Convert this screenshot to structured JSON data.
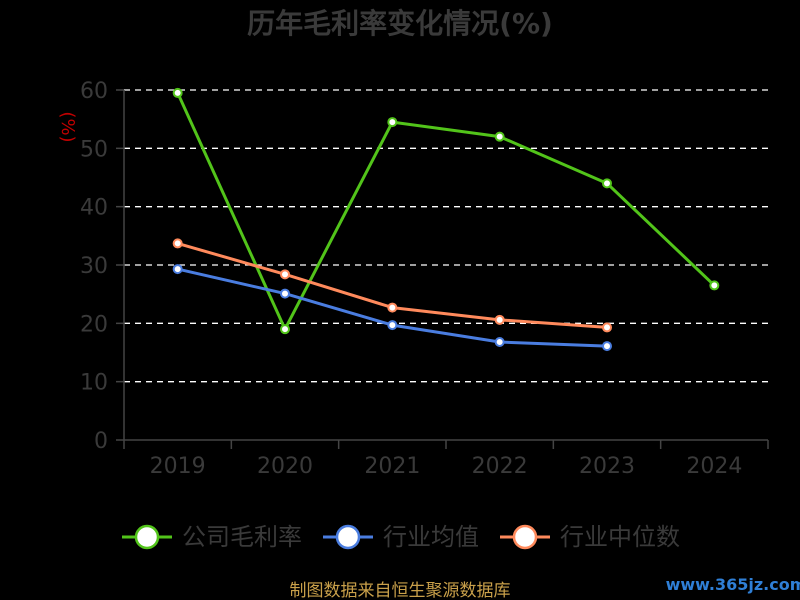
{
  "chart_data": {
    "type": "line",
    "title": "历年毛利率变化情况(%)",
    "ylabel": "(%)",
    "categories": [
      "2019",
      "2020",
      "2021",
      "2022",
      "2023",
      "2024"
    ],
    "yticks": [
      0,
      10,
      20,
      30,
      40,
      50,
      60
    ],
    "ylim": [
      0,
      60
    ],
    "grid": true,
    "legend_position": "bottom",
    "series": [
      {
        "name": "公司毛利率",
        "color": "#52c41a",
        "values": [
          59.5,
          19.0,
          54.5,
          52.0,
          44.0,
          26.5
        ]
      },
      {
        "name": "行业均值",
        "color": "#4a7de0",
        "values": [
          29.3,
          25.1,
          19.7,
          16.8,
          16.1,
          null
        ]
      },
      {
        "name": "行业中位数",
        "color": "#ff8a5c",
        "values": [
          33.7,
          28.4,
          22.7,
          20.6,
          19.3,
          null
        ]
      }
    ]
  },
  "footer": {
    "source": "制图数据来自恒生聚源数据库",
    "watermark": "www.365jz.com"
  }
}
